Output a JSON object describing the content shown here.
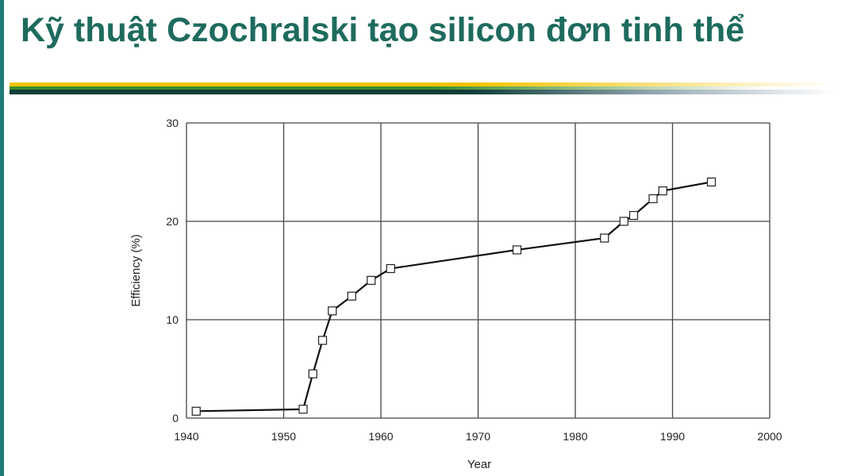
{
  "slide": {
    "title": "Kỹ thuật Czochralski tạo silicon đơn tinh thể"
  },
  "colors": {
    "title": "#1e6b5e",
    "accent_yellow": "#f5c400",
    "accent_dark": "#0e3e3a",
    "left_bar": "#1f7a78"
  },
  "chart_data": {
    "type": "line",
    "title": "",
    "xlabel": "Year",
    "ylabel": "Efficiency (%)",
    "xlim": [
      1940,
      2000
    ],
    "ylim": [
      0,
      30
    ],
    "xticks": [
      1940,
      1950,
      1960,
      1970,
      1980,
      1990,
      2000
    ],
    "yticks": [
      0,
      10,
      20,
      30
    ],
    "grid": true,
    "marker": "open-square",
    "x": [
      1941,
      1952,
      1953,
      1954,
      1955,
      1957,
      1959,
      1961,
      1974,
      1983,
      1985,
      1986,
      1988,
      1989,
      1994
    ],
    "y": [
      0.7,
      0.9,
      4.5,
      7.9,
      10.9,
      12.4,
      14.0,
      15.2,
      17.1,
      18.3,
      20.0,
      20.6,
      22.3,
      23.1,
      24.0
    ]
  }
}
